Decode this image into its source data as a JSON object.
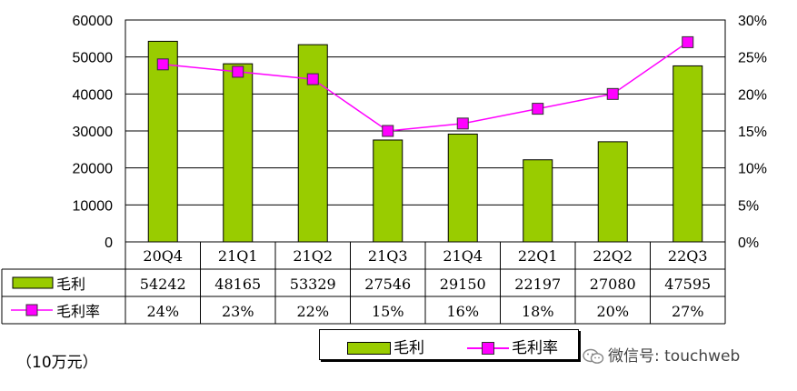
{
  "chart_data": {
    "type": "bar+line",
    "categories": [
      "20Q4",
      "21Q1",
      "21Q2",
      "21Q3",
      "21Q4",
      "22Q1",
      "22Q2",
      "22Q3"
    ],
    "series": [
      {
        "name": "毛利",
        "type": "bar",
        "axis": "left",
        "color": "#99cc00",
        "values": [
          54242,
          48165,
          53329,
          27546,
          29150,
          22197,
          27080,
          47595
        ]
      },
      {
        "name": "毛利率",
        "type": "line",
        "axis": "right",
        "color": "#ff00ff",
        "values": [
          24,
          23,
          22,
          15,
          16,
          18,
          20,
          27
        ]
      }
    ],
    "data_table": {
      "rows": [
        {
          "label": "毛利",
          "cells": [
            "54242",
            "48165",
            "53329",
            "27546",
            "29150",
            "22197",
            "27080",
            "47595"
          ]
        },
        {
          "label": "毛利率",
          "cells": [
            "24%",
            "23%",
            "22%",
            "15%",
            "16%",
            "18%",
            "20%",
            "27%"
          ]
        }
      ]
    },
    "y_left": {
      "ylim": [
        0,
        60000
      ],
      "ticks": [
        "0",
        "10000",
        "20000",
        "30000",
        "40000",
        "50000",
        "60000"
      ]
    },
    "y_right": {
      "ylim": [
        0,
        30
      ],
      "ticks": [
        "0%",
        "5%",
        "10%",
        "15%",
        "20%",
        "25%",
        "30%"
      ]
    },
    "grid": true,
    "legend": {
      "placement": "bottom",
      "items": [
        "毛利",
        "毛利率"
      ]
    },
    "unit_label": "（10万元）"
  },
  "watermark": {
    "text": "微信号: touchweb",
    "icon": "wechat-icon"
  }
}
